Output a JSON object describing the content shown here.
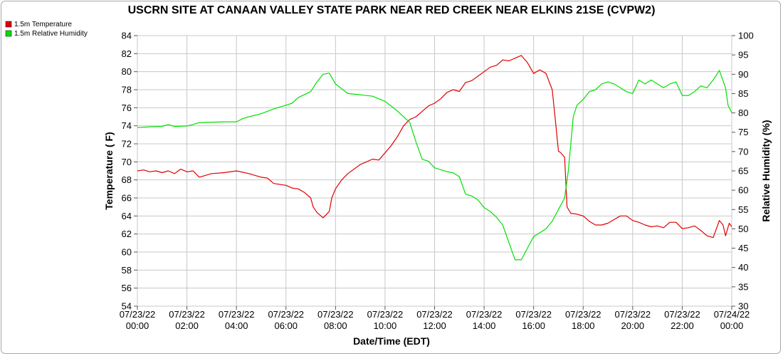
{
  "chart_data": {
    "type": "line",
    "title": "USCRN SITE AT CANAAN VALLEY STATE PARK NEAR RED CREEK NEAR ELKINS 21SE (CVPW2)",
    "xlabel": "Date/Time (EDT)",
    "ylabel": "Temperature ( F)",
    "y2label": "Relative Humidity (%)",
    "ylim": [
      54,
      84
    ],
    "y2lim": [
      30,
      100
    ],
    "xlim_hours": [
      0,
      24
    ],
    "x_tick_labels": [
      [
        "07/23/22",
        "00:00"
      ],
      [
        "07/23/22",
        "02:00"
      ],
      [
        "07/23/22",
        "04:00"
      ],
      [
        "07/23/22",
        "06:00"
      ],
      [
        "07/23/22",
        "08:00"
      ],
      [
        "07/23/22",
        "10:00"
      ],
      [
        "07/23/22",
        "12:00"
      ],
      [
        "07/23/22",
        "14:00"
      ],
      [
        "07/23/22",
        "16:00"
      ],
      [
        "07/23/22",
        "18:00"
      ],
      [
        "07/23/22",
        "20:00"
      ],
      [
        "07/23/22",
        "22:00"
      ],
      [
        "07/24/22",
        "00:00"
      ]
    ],
    "y_ticks": [
      54,
      56,
      58,
      60,
      62,
      64,
      66,
      68,
      70,
      72,
      74,
      76,
      78,
      80,
      82,
      84
    ],
    "y2_ticks": [
      30,
      35,
      40,
      45,
      50,
      55,
      60,
      65,
      70,
      75,
      80,
      85,
      90,
      95,
      100
    ],
    "grid": true,
    "legend_position": "top-left",
    "series": [
      {
        "name": "1.5m Temperature",
        "axis": "left",
        "color": "#e00000",
        "points": [
          [
            0,
            69.0
          ],
          [
            0.25,
            69.1
          ],
          [
            0.5,
            68.9
          ],
          [
            0.75,
            69.0
          ],
          [
            1,
            68.8
          ],
          [
            1.25,
            69.0
          ],
          [
            1.5,
            68.7
          ],
          [
            1.75,
            69.2
          ],
          [
            2,
            68.9
          ],
          [
            2.25,
            69.0
          ],
          [
            2.5,
            68.3
          ],
          [
            2.75,
            68.5
          ],
          [
            3,
            68.7
          ],
          [
            3.5,
            68.8
          ],
          [
            4,
            69.0
          ],
          [
            4.5,
            68.7
          ],
          [
            5,
            68.3
          ],
          [
            5.25,
            68.2
          ],
          [
            5.5,
            67.6
          ],
          [
            6,
            67.4
          ],
          [
            6.25,
            67.1
          ],
          [
            6.5,
            67.0
          ],
          [
            6.75,
            66.6
          ],
          [
            7,
            66.0
          ],
          [
            7.1,
            65.0
          ],
          [
            7.25,
            64.4
          ],
          [
            7.5,
            63.8
          ],
          [
            7.75,
            64.5
          ],
          [
            7.85,
            66.0
          ],
          [
            8.0,
            67.0
          ],
          [
            8.25,
            68.0
          ],
          [
            8.5,
            68.7
          ],
          [
            9,
            69.7
          ],
          [
            9.25,
            70.0
          ],
          [
            9.5,
            70.3
          ],
          [
            9.75,
            70.2
          ],
          [
            10,
            71.0
          ],
          [
            10.25,
            71.8
          ],
          [
            10.5,
            72.8
          ],
          [
            10.75,
            74.0
          ],
          [
            11,
            74.7
          ],
          [
            11.25,
            75.0
          ],
          [
            11.5,
            75.6
          ],
          [
            11.75,
            76.2
          ],
          [
            12,
            76.5
          ],
          [
            12.25,
            77.0
          ],
          [
            12.5,
            77.7
          ],
          [
            12.75,
            78.0
          ],
          [
            13,
            77.8
          ],
          [
            13.25,
            78.8
          ],
          [
            13.5,
            79.0
          ],
          [
            13.75,
            79.5
          ],
          [
            14,
            80.0
          ],
          [
            14.25,
            80.5
          ],
          [
            14.5,
            80.7
          ],
          [
            14.75,
            81.3
          ],
          [
            15,
            81.2
          ],
          [
            15.25,
            81.5
          ],
          [
            15.5,
            81.8
          ],
          [
            15.75,
            81.0
          ],
          [
            16,
            79.8
          ],
          [
            16.25,
            80.2
          ],
          [
            16.5,
            79.8
          ],
          [
            16.75,
            78.0
          ],
          [
            16.9,
            74.0
          ],
          [
            17.0,
            71.2
          ],
          [
            17.1,
            71.0
          ],
          [
            17.25,
            70.5
          ],
          [
            17.35,
            65.0
          ],
          [
            17.5,
            64.3
          ],
          [
            17.75,
            64.2
          ],
          [
            18,
            64.0
          ],
          [
            18.25,
            63.4
          ],
          [
            18.5,
            63.0
          ],
          [
            18.75,
            63.0
          ],
          [
            19,
            63.2
          ],
          [
            19.25,
            63.6
          ],
          [
            19.5,
            64.0
          ],
          [
            19.75,
            64.0
          ],
          [
            20,
            63.5
          ],
          [
            20.25,
            63.3
          ],
          [
            20.5,
            63.0
          ],
          [
            20.75,
            62.8
          ],
          [
            21,
            62.9
          ],
          [
            21.25,
            62.7
          ],
          [
            21.5,
            63.3
          ],
          [
            21.75,
            63.3
          ],
          [
            22,
            62.6
          ],
          [
            22.25,
            62.7
          ],
          [
            22.5,
            62.9
          ],
          [
            22.75,
            62.4
          ],
          [
            23,
            61.8
          ],
          [
            23.25,
            61.6
          ],
          [
            23.5,
            63.5
          ],
          [
            23.65,
            63.0
          ],
          [
            23.75,
            61.8
          ],
          [
            23.9,
            63.2
          ],
          [
            24,
            62.8
          ]
        ]
      },
      {
        "name": "1.5m Relative Humidity",
        "axis": "right",
        "color": "#00e000",
        "points": [
          [
            0,
            76.2
          ],
          [
            0.5,
            76.4
          ],
          [
            1,
            76.5
          ],
          [
            1.25,
            77.0
          ],
          [
            1.5,
            76.5
          ],
          [
            2,
            76.6
          ],
          [
            2.25,
            77.0
          ],
          [
            2.5,
            77.5
          ],
          [
            3,
            77.6
          ],
          [
            3.5,
            77.7
          ],
          [
            4,
            77.7
          ],
          [
            4.25,
            78.5
          ],
          [
            4.5,
            79.0
          ],
          [
            5,
            79.8
          ],
          [
            5.5,
            81.0
          ],
          [
            6,
            82.0
          ],
          [
            6.25,
            82.5
          ],
          [
            6.5,
            84.0
          ],
          [
            7,
            85.5
          ],
          [
            7.25,
            88.0
          ],
          [
            7.5,
            90.0
          ],
          [
            7.75,
            90.3
          ],
          [
            8,
            87.5
          ],
          [
            8.5,
            85.0
          ],
          [
            9,
            84.7
          ],
          [
            9.5,
            84.3
          ],
          [
            10,
            83.0
          ],
          [
            10.5,
            80.5
          ],
          [
            11,
            77.5
          ],
          [
            11.25,
            72.5
          ],
          [
            11.5,
            68.0
          ],
          [
            11.75,
            67.5
          ],
          [
            12,
            65.8
          ],
          [
            12.5,
            64.8
          ],
          [
            12.75,
            64.5
          ],
          [
            13,
            63.5
          ],
          [
            13.25,
            59.0
          ],
          [
            13.5,
            58.5
          ],
          [
            13.75,
            57.5
          ],
          [
            14,
            55.5
          ],
          [
            14.25,
            54.5
          ],
          [
            14.5,
            53.0
          ],
          [
            14.75,
            51.0
          ],
          [
            15,
            46.5
          ],
          [
            15.25,
            42.0
          ],
          [
            15.5,
            42.0
          ],
          [
            15.75,
            45.0
          ],
          [
            16,
            48.0
          ],
          [
            16.25,
            49.0
          ],
          [
            16.5,
            50.0
          ],
          [
            16.75,
            52.0
          ],
          [
            17,
            55.0
          ],
          [
            17.25,
            58.0
          ],
          [
            17.4,
            65.0
          ],
          [
            17.5,
            72.0
          ],
          [
            17.6,
            79.0
          ],
          [
            17.75,
            82.0
          ],
          [
            18,
            83.5
          ],
          [
            18.25,
            85.5
          ],
          [
            18.5,
            86.0
          ],
          [
            18.75,
            87.5
          ],
          [
            19,
            88.0
          ],
          [
            19.25,
            87.5
          ],
          [
            19.5,
            86.5
          ],
          [
            19.75,
            85.5
          ],
          [
            20,
            85.0
          ],
          [
            20.25,
            88.5
          ],
          [
            20.5,
            87.5
          ],
          [
            20.75,
            88.5
          ],
          [
            21,
            87.5
          ],
          [
            21.25,
            86.5
          ],
          [
            21.5,
            87.5
          ],
          [
            21.75,
            88.0
          ],
          [
            22,
            84.5
          ],
          [
            22.25,
            84.5
          ],
          [
            22.5,
            85.5
          ],
          [
            22.75,
            87.0
          ],
          [
            23,
            86.5
          ],
          [
            23.25,
            88.5
          ],
          [
            23.5,
            91.0
          ],
          [
            23.75,
            86.5
          ],
          [
            23.85,
            82.0
          ],
          [
            24,
            80.0
          ]
        ]
      }
    ]
  }
}
